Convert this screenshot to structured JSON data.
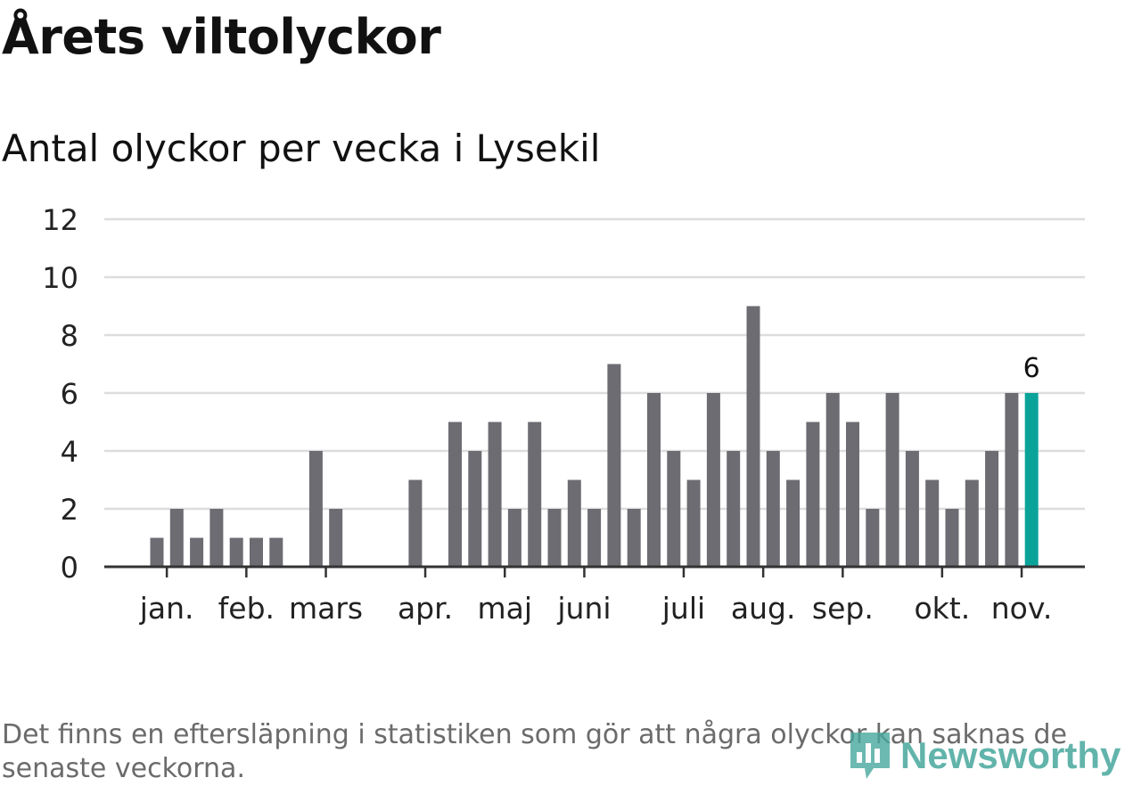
{
  "title": "Årets viltolyckor",
  "subtitle": "Antal olyckor per vecka i Lysekil",
  "footnote": "Det finns en eftersläpning i statistiken som gör att några olyckor kan saknas de senaste veckorna.",
  "brand": {
    "name": "Newsworthy",
    "icon": "bar-chart-icon",
    "color": "#47a79d"
  },
  "colors": {
    "bar": "#6d6c72",
    "highlight": "#0aa39a",
    "grid": "#dddddd",
    "axis": "#333333"
  },
  "chart_data": {
    "type": "bar",
    "title": "Antal olyckor per vecka i Lysekil",
    "xlabel": "",
    "ylabel": "",
    "ylim": [
      0,
      12
    ],
    "yticks": [
      "0",
      "2",
      "4",
      "6",
      "8",
      "10",
      "12"
    ],
    "grid": true,
    "x": [
      1,
      2,
      3,
      4,
      5,
      6,
      7,
      8,
      9,
      10,
      11,
      12,
      13,
      14,
      15,
      16,
      17,
      18,
      19,
      20,
      21,
      22,
      23,
      24,
      25,
      26,
      27,
      28,
      29,
      30,
      31,
      32,
      33,
      34,
      35,
      36,
      37,
      38,
      39,
      40,
      41,
      42,
      43,
      44,
      45
    ],
    "values": [
      1,
      2,
      1,
      2,
      1,
      1,
      1,
      0,
      4,
      2,
      0,
      0,
      0,
      3,
      0,
      5,
      4,
      5,
      2,
      5,
      2,
      3,
      2,
      7,
      2,
      6,
      4,
      3,
      6,
      4,
      9,
      4,
      3,
      5,
      6,
      5,
      2,
      6,
      4,
      3,
      2,
      3,
      4,
      6,
      6
    ],
    "highlight_index": 44,
    "highlight_label": "6",
    "month_ticks": [
      {
        "label": "jan.",
        "x": 1.5
      },
      {
        "label": "feb.",
        "x": 5.5
      },
      {
        "label": "mars",
        "x": 9.5
      },
      {
        "label": "apr.",
        "x": 14.5
      },
      {
        "label": "maj",
        "x": 18.5
      },
      {
        "label": "juni",
        "x": 22.5
      },
      {
        "label": "juli",
        "x": 27.5
      },
      {
        "label": "aug.",
        "x": 31.5
      },
      {
        "label": "sep.",
        "x": 35.5
      },
      {
        "label": "okt.",
        "x": 40.5
      },
      {
        "label": "nov.",
        "x": 44.5
      }
    ]
  }
}
